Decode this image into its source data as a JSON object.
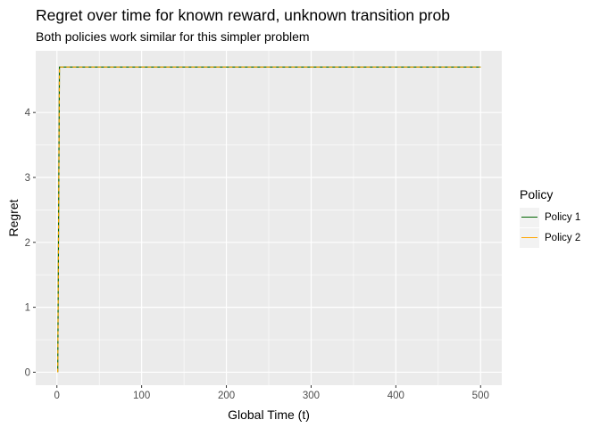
{
  "chart_data": {
    "type": "line",
    "title": "Regret over time for known reward, unknown transition prob",
    "subtitle": "Both policies work similar for this simpler problem",
    "xlabel": "Global Time (t)",
    "ylabel": "Regret",
    "xlim": [
      -25,
      525
    ],
    "ylim": [
      -0.2,
      4.95
    ],
    "xticks": [
      0,
      100,
      200,
      300,
      400,
      500
    ],
    "yticks": [
      0,
      1,
      2,
      3,
      4
    ],
    "grid": true,
    "legend": {
      "title": "Policy",
      "position": "right",
      "entries": [
        "Policy 1",
        "Policy 2"
      ]
    },
    "series": [
      {
        "name": "Policy 1",
        "color": "#006400",
        "style": "solid",
        "points": [
          [
            1,
            0
          ],
          [
            2,
            2.35
          ],
          [
            3,
            4.7
          ],
          [
            500,
            4.7
          ]
        ]
      },
      {
        "name": "Policy 2",
        "color": "#FFA500",
        "style": "dashed",
        "points": [
          [
            1,
            0
          ],
          [
            2,
            2.35
          ],
          [
            3,
            4.7
          ],
          [
            500,
            4.7
          ]
        ]
      }
    ]
  }
}
